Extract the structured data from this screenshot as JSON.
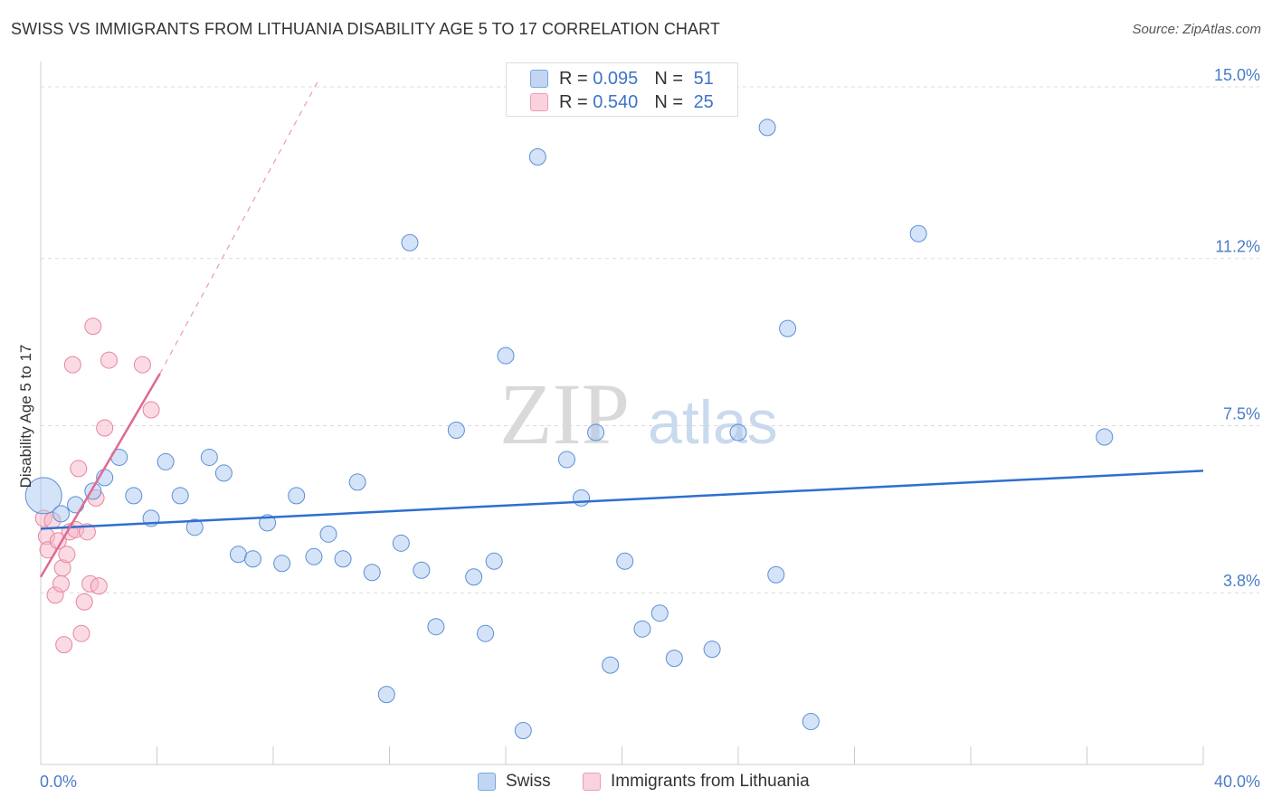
{
  "header": {
    "title": "SWISS VS IMMIGRANTS FROM LITHUANIA DISABILITY AGE 5 TO 17 CORRELATION CHART",
    "source": "Source: ZipAtlas.com"
  },
  "watermark": {
    "zip": "ZIP",
    "atlas": "atlas"
  },
  "stats_legend": [
    {
      "series": "Swiss",
      "r_label": "R = ",
      "r_value": "0.095",
      "n_label": "N = ",
      "n_value": "51",
      "color": "#a9c8ef"
    },
    {
      "series": "Immigrants from Lithuania",
      "r_label": "R = ",
      "r_value": "0.540",
      "n_label": "N = ",
      "n_value": "25",
      "color": "#f5b7c8"
    }
  ],
  "chart_data": {
    "type": "scatter",
    "title": "SWISS VS IMMIGRANTS FROM LITHUANIA DISABILITY AGE 5 TO 17 CORRELATION CHART",
    "xlabel": "",
    "ylabel": "Disability Age 5 to 17",
    "xlim": [
      0,
      40
    ],
    "ylim": [
      0,
      15.4
    ],
    "x_tick_labels": [
      "0.0%",
      "40.0%"
    ],
    "y_ticks": [
      3.8,
      7.5,
      11.2,
      15.0
    ],
    "y_tick_labels": [
      "3.8%",
      "7.5%",
      "11.2%",
      "15.0%"
    ],
    "legend": [
      "Swiss",
      "Immigrants from Lithuania"
    ],
    "series": [
      {
        "name": "Swiss",
        "color": "#a9c8ef",
        "stroke": "#5b8fd6",
        "trend": {
          "x": [
            0,
            40
          ],
          "y": [
            5.22,
            6.5
          ]
        },
        "points": [
          [
            0.1,
            5.95,
            1
          ],
          [
            0.7,
            5.55,
            0
          ],
          [
            1.2,
            5.75,
            0
          ],
          [
            1.8,
            6.05,
            0
          ],
          [
            2.2,
            6.35,
            0
          ],
          [
            2.7,
            6.8,
            0
          ],
          [
            3.2,
            5.95,
            0
          ],
          [
            3.8,
            5.45,
            0
          ],
          [
            4.3,
            6.7,
            0
          ],
          [
            4.8,
            5.95,
            0
          ],
          [
            5.3,
            5.25,
            0
          ],
          [
            5.8,
            6.8,
            0
          ],
          [
            6.3,
            6.45,
            0
          ],
          [
            6.8,
            4.65,
            0
          ],
          [
            7.3,
            4.55,
            0
          ],
          [
            7.8,
            5.35,
            0
          ],
          [
            8.3,
            4.45,
            0
          ],
          [
            8.8,
            5.95,
            0
          ],
          [
            9.4,
            4.6,
            0
          ],
          [
            9.9,
            5.1,
            0
          ],
          [
            10.4,
            4.55,
            0
          ],
          [
            10.9,
            6.25,
            0
          ],
          [
            11.4,
            4.25,
            0
          ],
          [
            11.9,
            1.55,
            0
          ],
          [
            12.4,
            4.9,
            0
          ],
          [
            12.7,
            11.55,
            0
          ],
          [
            13.1,
            4.3,
            0
          ],
          [
            13.6,
            3.05,
            0
          ],
          [
            14.3,
            7.4,
            0
          ],
          [
            14.9,
            4.15,
            0
          ],
          [
            15.3,
            2.9,
            0
          ],
          [
            15.6,
            4.5,
            0
          ],
          [
            16.0,
            9.05,
            0
          ],
          [
            16.6,
            0.75,
            0
          ],
          [
            17.1,
            13.45,
            0
          ],
          [
            18.1,
            6.75,
            0
          ],
          [
            18.6,
            5.9,
            0
          ],
          [
            19.1,
            7.35,
            0
          ],
          [
            19.6,
            2.2,
            0
          ],
          [
            20.1,
            4.5,
            0
          ],
          [
            20.7,
            3.0,
            0
          ],
          [
            21.3,
            3.35,
            0
          ],
          [
            21.8,
            2.35,
            0
          ],
          [
            23.1,
            2.55,
            0
          ],
          [
            24.0,
            7.35,
            0
          ],
          [
            25.0,
            14.1,
            0
          ],
          [
            25.3,
            4.2,
            0
          ],
          [
            25.7,
            9.65,
            0
          ],
          [
            26.5,
            0.95,
            0
          ],
          [
            30.2,
            11.75,
            0
          ],
          [
            36.6,
            7.25,
            0
          ]
        ]
      },
      {
        "name": "Immigrants from Lithuania",
        "color": "#f5b7c8",
        "stroke": "#e9849f",
        "trend": {
          "x": [
            0,
            4.1
          ],
          "y": [
            4.15,
            8.65
          ]
        },
        "trend_extension": {
          "x": [
            4.1,
            9.6
          ],
          "y": [
            8.65,
            15.2
          ]
        },
        "points": [
          [
            0.1,
            5.45,
            0
          ],
          [
            0.2,
            5.05,
            0
          ],
          [
            0.25,
            4.75,
            0
          ],
          [
            0.4,
            5.4,
            0
          ],
          [
            0.5,
            3.75,
            0
          ],
          [
            0.6,
            4.95,
            0
          ],
          [
            0.7,
            4.0,
            0
          ],
          [
            0.75,
            4.35,
            0
          ],
          [
            0.8,
            2.65,
            0
          ],
          [
            0.9,
            4.65,
            0
          ],
          [
            1.0,
            5.15,
            0
          ],
          [
            1.1,
            8.85,
            0
          ],
          [
            1.2,
            5.2,
            0
          ],
          [
            1.3,
            6.55,
            0
          ],
          [
            1.4,
            2.9,
            0
          ],
          [
            1.5,
            3.6,
            0
          ],
          [
            1.6,
            5.15,
            0
          ],
          [
            1.7,
            4.0,
            0
          ],
          [
            1.8,
            9.7,
            0
          ],
          [
            1.9,
            5.9,
            0
          ],
          [
            2.0,
            3.95,
            0
          ],
          [
            2.2,
            7.45,
            0
          ],
          [
            2.35,
            8.95,
            0
          ],
          [
            3.5,
            8.85,
            0
          ],
          [
            3.8,
            7.85,
            0
          ]
        ]
      }
    ]
  },
  "bottom_legend": [
    {
      "label": "Swiss",
      "color": "#a9c8ef",
      "border": "#7aa7e0"
    },
    {
      "label": "Immigrants from Lithuania",
      "color": "#f9d2dd",
      "border": "#ec9cb3"
    }
  ]
}
